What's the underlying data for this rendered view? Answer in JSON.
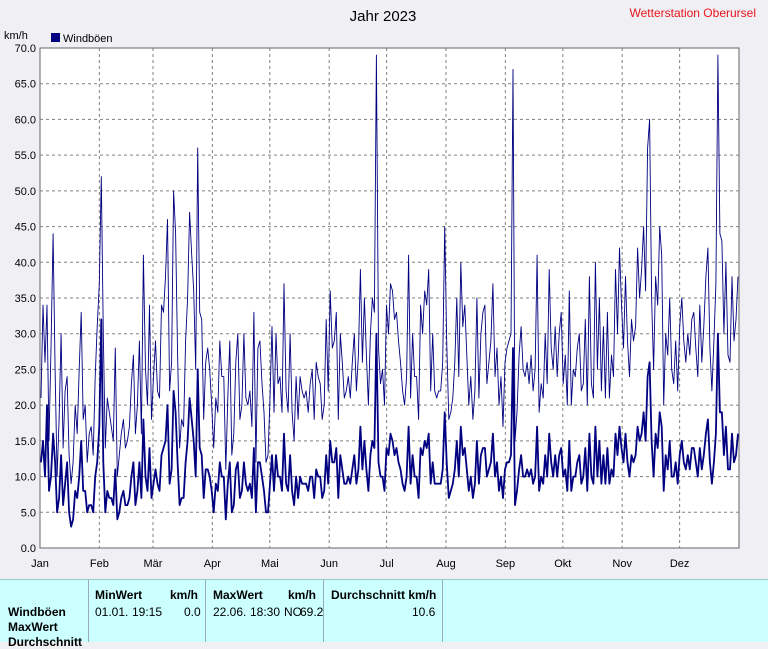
{
  "header": {
    "title": "Jahr 2023",
    "station": "Wetterstation Oberursel",
    "unit": "km/h"
  },
  "colors": {
    "series": "#000080",
    "station_text": "#e8141c",
    "plot_bg": "#ffffff",
    "grid": "#808080",
    "stats_bg": "#ccffff"
  },
  "chart_data": {
    "type": "line",
    "title": "Jahr 2023",
    "ylabel": "km/h",
    "ylim": [
      0,
      70
    ],
    "y_ticks": [
      "0.0",
      "5.0",
      "10.0",
      "15.0",
      "20.0",
      "25.0",
      "30.0",
      "35.0",
      "40.0",
      "45.0",
      "50.0",
      "55.0",
      "60.0",
      "65.0",
      "70.0"
    ],
    "x_labels": [
      "Jan",
      "Feb",
      "Mär",
      "Apr",
      "Mai",
      "Jun",
      "Jul",
      "Aug",
      "Sep",
      "Okt",
      "Nov",
      "Dez"
    ],
    "grid": true,
    "legend": "top-left",
    "series": [
      {
        "name": "Windböen",
        "day_values_note": "",
        "daily_max": [
          21,
          34,
          26,
          34,
          15,
          28,
          44,
          25,
          10,
          18,
          30,
          14,
          22,
          24,
          13,
          9,
          12,
          20,
          16,
          25,
          33,
          18,
          20,
          12,
          16,
          17,
          13,
          24,
          31,
          37,
          52,
          30,
          14,
          21,
          19,
          17,
          15,
          28,
          10,
          13,
          16,
          18,
          14,
          15,
          17,
          23,
          27,
          16,
          20,
          29,
          16,
          41,
          25,
          20,
          34,
          18,
          24,
          29,
          22,
          21,
          34,
          33,
          38,
          46,
          22,
          26,
          50,
          44,
          27,
          14,
          18,
          17,
          29,
          35,
          47,
          41,
          36,
          25,
          56,
          33,
          32,
          18,
          26,
          28,
          25,
          20,
          14,
          21,
          19,
          29,
          24,
          24,
          11,
          21,
          29,
          13,
          16,
          26,
          30,
          18,
          20,
          30,
          21,
          20,
          22,
          17,
          33,
          12,
          28,
          29,
          23,
          19,
          12,
          13,
          21,
          31,
          19,
          30,
          23,
          24,
          19,
          37,
          22,
          19,
          30,
          19,
          15,
          24,
          18,
          24,
          22,
          21,
          22,
          19,
          23,
          25,
          18,
          26,
          24,
          23,
          18,
          20,
          32,
          22,
          36,
          28,
          29,
          33,
          18,
          30,
          26,
          21,
          22,
          24,
          21,
          26,
          30,
          22,
          27,
          39,
          26,
          35,
          27,
          20,
          30,
          35,
          33,
          69,
          28,
          23,
          25,
          20,
          34,
          30,
          37,
          36,
          32,
          33,
          29,
          26,
          22,
          20,
          24,
          41,
          21,
          30,
          24,
          24,
          18,
          34,
          30,
          36,
          34,
          39,
          22,
          30,
          22,
          21,
          22,
          22,
          26,
          45,
          29,
          18,
          19,
          21,
          26,
          35,
          24,
          40,
          31,
          34,
          27,
          20,
          24,
          18,
          22,
          35,
          21,
          30,
          33,
          34,
          23,
          26,
          29,
          37,
          24,
          28,
          20,
          24,
          17,
          26,
          28,
          29,
          30,
          67,
          15,
          19,
          27,
          31,
          25,
          24,
          26,
          23,
          27,
          22,
          25,
          41,
          19,
          23,
          21,
          30,
          23,
          39,
          28,
          25,
          31,
          24,
          30,
          33,
          23,
          27,
          20,
          36,
          20,
          25,
          24,
          28,
          30,
          22,
          23,
          32,
          20,
          38,
          23,
          21,
          40,
          25,
          35,
          22,
          31,
          21,
          33,
          21,
          27,
          24,
          39,
          30,
          42,
          34,
          28,
          38,
          29,
          24,
          32,
          29,
          31,
          42,
          35,
          39,
          45,
          36,
          56,
          60,
          35,
          25,
          38,
          34,
          45,
          41,
          20,
          30,
          27,
          35,
          25,
          23,
          29,
          22,
          31,
          35,
          29,
          26,
          30,
          27,
          32,
          33,
          28,
          24,
          34,
          26,
          31,
          38,
          42,
          28,
          22,
          29,
          37,
          69,
          44,
          43,
          30,
          40,
          27,
          26,
          38,
          29,
          32,
          38
        ],
        "daily_mean": [
          12,
          15,
          10,
          20,
          8,
          10,
          16,
          12,
          5,
          7,
          13,
          6,
          9,
          12,
          5,
          3,
          4,
          8,
          7,
          10,
          15,
          8,
          8,
          5,
          6,
          6,
          5,
          10,
          12,
          17,
          32,
          12,
          5,
          8,
          7,
          7,
          6,
          11,
          4,
          5,
          7,
          8,
          6,
          6,
          7,
          10,
          12,
          6,
          8,
          12,
          7,
          18,
          10,
          8,
          14,
          7,
          9,
          11,
          9,
          8,
          13,
          14,
          15,
          20,
          9,
          11,
          22,
          19,
          12,
          6,
          7,
          7,
          12,
          15,
          21,
          18,
          15,
          10,
          25,
          14,
          13,
          7,
          11,
          11,
          10,
          8,
          5,
          9,
          8,
          12,
          10,
          10,
          4,
          9,
          12,
          5,
          6,
          11,
          12,
          7,
          8,
          12,
          9,
          8,
          9,
          7,
          14,
          5,
          12,
          12,
          10,
          8,
          5,
          5,
          9,
          13,
          8,
          13,
          10,
          10,
          8,
          16,
          9,
          8,
          13,
          8,
          6,
          10,
          7,
          10,
          9,
          9,
          9,
          8,
          10,
          10,
          7,
          11,
          10,
          10,
          7,
          8,
          13,
          9,
          15,
          12,
          12,
          14,
          7,
          13,
          11,
          9,
          9,
          10,
          9,
          11,
          13,
          9,
          11,
          17,
          11,
          15,
          11,
          8,
          13,
          15,
          14,
          30,
          12,
          10,
          10,
          8,
          14,
          13,
          16,
          15,
          13,
          14,
          12,
          11,
          9,
          8,
          10,
          17,
          9,
          13,
          10,
          10,
          7,
          14,
          13,
          15,
          14,
          16,
          9,
          12,
          9,
          9,
          9,
          9,
          11,
          19,
          12,
          7,
          8,
          9,
          11,
          15,
          10,
          17,
          13,
          14,
          11,
          8,
          10,
          7,
          9,
          15,
          9,
          13,
          14,
          14,
          10,
          11,
          12,
          16,
          10,
          12,
          8,
          10,
          7,
          11,
          12,
          12,
          13,
          28,
          6,
          8,
          11,
          13,
          10,
          10,
          11,
          10,
          11,
          9,
          10,
          17,
          8,
          10,
          9,
          13,
          10,
          16,
          12,
          10,
          13,
          10,
          13,
          14,
          10,
          11,
          8,
          15,
          8,
          10,
          10,
          12,
          13,
          9,
          10,
          14,
          8,
          16,
          10,
          9,
          17,
          10,
          15,
          9,
          13,
          9,
          14,
          9,
          11,
          10,
          16,
          13,
          17,
          14,
          12,
          16,
          12,
          10,
          13,
          12,
          13,
          17,
          15,
          16,
          19,
          15,
          24,
          26,
          15,
          10,
          16,
          14,
          19,
          17,
          8,
          13,
          11,
          15,
          10,
          10,
          12,
          9,
          13,
          15,
          12,
          11,
          13,
          11,
          14,
          14,
          12,
          10,
          14,
          11,
          13,
          16,
          18,
          12,
          9,
          12,
          16,
          30,
          19,
          19,
          13,
          17,
          11,
          11,
          16,
          12,
          13,
          16
        ]
      }
    ]
  },
  "stats": {
    "row_labels": [
      "Windböen",
      "MaxWert",
      "Durchschnitt"
    ],
    "min_header": "MinWert",
    "min_unit": "km/h",
    "min_date": "01.01.",
    "min_time": "19:15",
    "min_value": "0.0",
    "max_header": "MaxWert",
    "max_unit": "km/h",
    "max_date": "22.06.",
    "max_time": "18:30",
    "max_dir": "NO",
    "max_value": "69.2",
    "avg_header": "Durchschnitt km/h",
    "avg_value": "10.6"
  }
}
